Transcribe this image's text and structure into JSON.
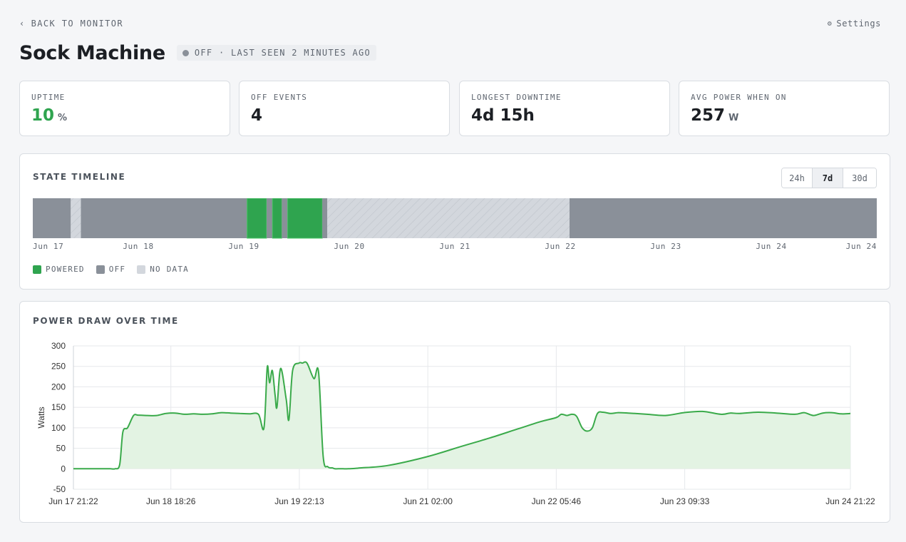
{
  "nav": {
    "back_label": "BACK TO MONITOR",
    "back_icon": "chevron-left-icon",
    "settings_label": "Settings",
    "settings_icon": "gear-icon"
  },
  "device": {
    "name": "Sock Machine",
    "status": "OFF · LAST SEEN 2 MINUTES AGO",
    "status_color": "#8a9099"
  },
  "stats": [
    {
      "label": "UPTIME",
      "value": "10",
      "unit": "%",
      "value_color": "#2fa44f"
    },
    {
      "label": "OFF EVENTS",
      "value": "4",
      "unit": ""
    },
    {
      "label": "LONGEST DOWNTIME",
      "value": "4d 15h",
      "unit": ""
    },
    {
      "label": "AVG POWER WHEN ON",
      "value": "257",
      "unit": "W"
    }
  ],
  "timeline": {
    "title": "STATE TIMELINE",
    "ranges": [
      "24h",
      "7d",
      "30d"
    ],
    "active_range": "7d",
    "tick_labels": [
      "Jun 17",
      "Jun 18",
      "Jun 19",
      "Jun 20",
      "Jun 21",
      "Jun 22",
      "Jun 23",
      "Jun 24",
      "Jun 24"
    ],
    "segments": [
      {
        "state": "off",
        "start": 0.0,
        "end": 0.045
      },
      {
        "state": "nodata",
        "start": 0.045,
        "end": 0.057
      },
      {
        "state": "off",
        "start": 0.057,
        "end": 0.254
      },
      {
        "state": "powered",
        "start": 0.254,
        "end": 0.277
      },
      {
        "state": "off",
        "start": 0.277,
        "end": 0.284
      },
      {
        "state": "powered",
        "start": 0.284,
        "end": 0.295
      },
      {
        "state": "off",
        "start": 0.295,
        "end": 0.302
      },
      {
        "state": "powered",
        "start": 0.302,
        "end": 0.343
      },
      {
        "state": "off",
        "start": 0.343,
        "end": 0.349
      },
      {
        "state": "nodata",
        "start": 0.349,
        "end": 0.636
      },
      {
        "state": "off",
        "start": 0.636,
        "end": 1.0
      }
    ],
    "legend": [
      {
        "label": "POWERED",
        "color": "#2fa44f"
      },
      {
        "label": "OFF",
        "color": "#8a9099"
      },
      {
        "label": "NO DATA",
        "color": "#d3d7dd"
      }
    ]
  },
  "power_chart": {
    "title": "POWER DRAW OVER TIME",
    "chart_data": {
      "type": "area",
      "ylabel": "Watts",
      "ylim": [
        -50,
        300
      ],
      "y_ticks": [
        300,
        250,
        200,
        150,
        100,
        50,
        0,
        -50
      ],
      "x_range_hours": [
        0,
        168
      ],
      "x_tick_labels": [
        "Jun 17 21:22",
        "Jun 18 18:26",
        "Jun 19 22:13",
        "Jun 21 02:00",
        "Jun 22 05:46",
        "Jun 23 09:33",
        "Jun 24 21:22"
      ],
      "x_tick_hours": [
        0,
        21.07,
        48.85,
        76.63,
        104.4,
        132.18,
        168
      ],
      "grid": true,
      "series": [
        {
          "color": "#3aaa4a",
          "fill": "#e3f3e3",
          "x_hours": [
            0,
            7,
            8,
            9,
            10,
            10.7,
            11.7,
            13,
            14,
            16,
            18,
            20,
            22,
            24,
            26,
            28,
            30,
            32,
            34,
            36,
            38,
            40,
            41.2,
            41.9,
            42.4,
            43.0,
            43.6,
            44.0,
            44.8,
            46.0,
            46.6,
            47.4,
            48.8,
            49.5,
            50.5,
            52.0,
            53.0,
            54.0,
            55.0,
            56.0,
            56.5,
            57.2,
            57.8,
            58.3,
            59.5,
            61.0,
            62.0,
            68,
            76.63,
            84,
            90,
            96,
            101,
            104.4,
            105.5,
            106.7,
            107.8,
            108.8,
            110.0,
            111.1,
            112.2,
            113.3,
            114.5,
            116.2,
            117.8,
            120,
            124,
            128,
            132,
            136,
            140,
            142,
            144,
            148,
            152,
            156,
            158,
            160,
            162,
            164,
            166,
            168
          ],
          "y_watts": [
            0,
            0,
            0,
            0,
            10,
            90,
            100,
            130,
            131,
            130,
            130,
            135,
            136,
            133,
            134,
            133,
            134,
            137,
            136,
            135,
            134,
            133,
            100,
            248,
            210,
            240,
            180,
            150,
            245,
            170,
            120,
            240,
            258,
            258,
            258,
            220,
            236,
            30,
            5,
            2,
            0,
            0,
            0,
            0,
            0,
            1,
            2,
            8,
            30,
            55,
            75,
            97,
            115,
            125,
            133,
            130,
            133,
            128,
            100,
            92,
            100,
            135,
            138,
            135,
            137,
            136,
            133,
            130,
            137,
            140,
            133,
            136,
            135,
            138,
            136,
            133,
            137,
            130,
            136,
            137,
            134,
            135
          ]
        }
      ]
    }
  }
}
